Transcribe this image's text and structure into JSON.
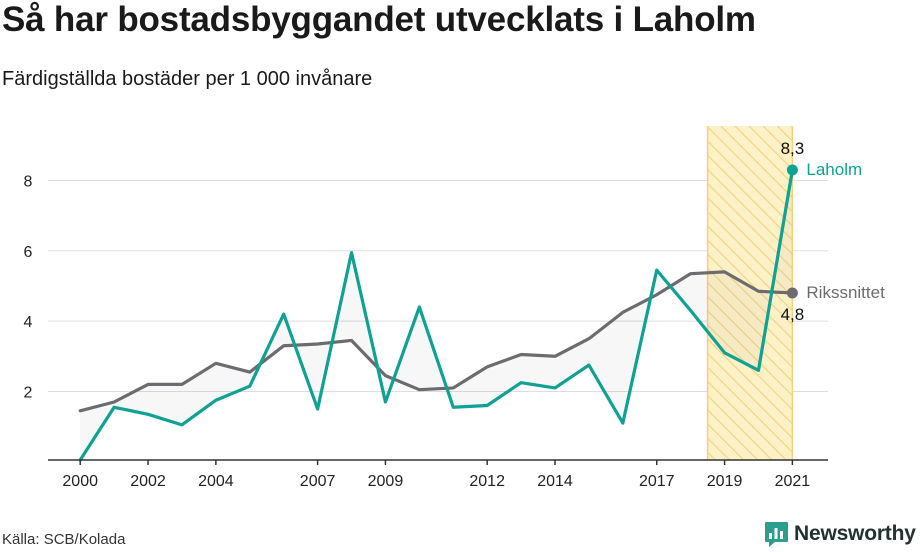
{
  "title": "Så har bostadsbyggandet utvecklats i Laholm",
  "subtitle": "Färdigställda bostäder per 1 000 invånare",
  "source": "Källa: SCB/Kolada",
  "logo_text": "Newsworthy",
  "colors": {
    "laholm": "#0fa193",
    "riket": "#6d6b70",
    "highlight_fill": "#fdf1c8",
    "highlight_stroke": "#f3d27a",
    "grid": "#dddddd",
    "logo": "#2c9e8d"
  },
  "chart_data": {
    "type": "line",
    "title": "Så har bostadsbyggandet utvecklats i Laholm",
    "subtitle": "Färdigställda bostäder per 1 000 invånare",
    "x": [
      2000,
      2001,
      2002,
      2003,
      2004,
      2005,
      2006,
      2007,
      2008,
      2009,
      2010,
      2011,
      2012,
      2013,
      2014,
      2015,
      2016,
      2017,
      2018,
      2019,
      2020,
      2021
    ],
    "x_tick_labels": [
      "2000",
      "2002",
      "2004",
      "2007",
      "2009",
      "2012",
      "2014",
      "2017",
      "2019",
      "2021"
    ],
    "y_ticks": [
      2,
      4,
      6,
      8
    ],
    "y_tick_labels": [
      "2",
      "4",
      "6",
      "8"
    ],
    "xlim": [
      1999.05,
      2022.05
    ],
    "ylim": [
      0.05,
      9.55
    ],
    "grid": true,
    "highlight_range": [
      2018.5,
      2021
    ],
    "series": [
      {
        "name": "Laholm",
        "values": [
          0.05,
          1.55,
          1.35,
          1.05,
          1.75,
          2.15,
          4.2,
          1.5,
          5.95,
          1.7,
          4.4,
          1.55,
          1.6,
          2.25,
          2.1,
          2.75,
          1.1,
          5.45,
          4.3,
          3.1,
          2.6,
          8.3
        ]
      },
      {
        "name": "Rikssnittet",
        "values": [
          1.45,
          1.7,
          2.2,
          2.2,
          2.8,
          2.55,
          3.3,
          3.35,
          3.45,
          2.45,
          2.05,
          2.1,
          2.7,
          3.05,
          3.0,
          3.5,
          4.25,
          4.75,
          5.35,
          5.4,
          4.85,
          4.8
        ]
      }
    ],
    "end_labels": {
      "laholm_value": "8,3",
      "riket_value": "4,8"
    }
  }
}
